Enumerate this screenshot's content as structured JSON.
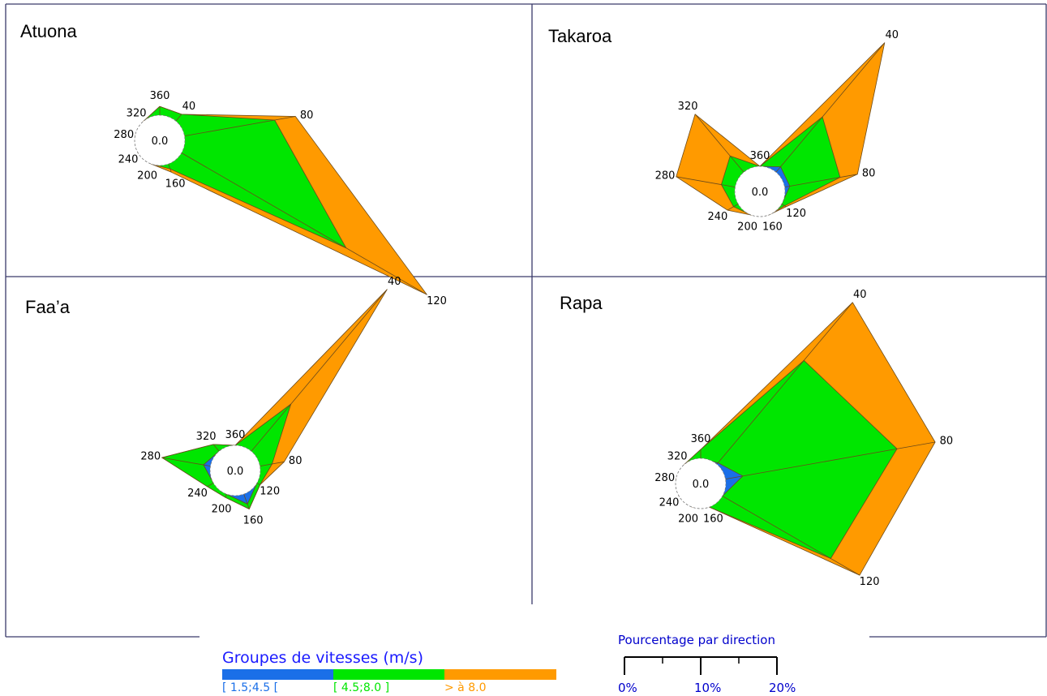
{
  "colors": {
    "frame": "#3a3a6a",
    "blue": "#1a6fe8",
    "green": "#00e600",
    "orange": "#ff9a00",
    "edge": "#6b4a1a",
    "legend_title": "#1a1aff"
  },
  "legend": {
    "title": "Groupes de vitesses (m/s)",
    "groups": [
      {
        "label": "[ 1.5;4.5 [",
        "color": "#1a6fe8"
      },
      {
        "label": "[ 4.5;8.0 ]",
        "color": "#00e600"
      },
      {
        "label": "> à 8.0",
        "color": "#ff9a00"
      }
    ]
  },
  "scale": {
    "title": "Pourcentage par direction",
    "ticks": [
      "0%",
      "10%",
      "20%"
    ],
    "color": "#0000cc"
  },
  "chart_data": [
    {
      "type": "wind-rose",
      "title": "Atuona",
      "center_label": "0.0",
      "scale_max_percent": 20,
      "directions": [
        40,
        80,
        120,
        160,
        200,
        240,
        280,
        320,
        360
      ],
      "series": [
        {
          "name": "[ 1.5;4.5 [",
          "values": [
            0,
            0,
            0,
            0,
            0,
            0,
            0,
            0,
            0
          ]
        },
        {
          "name": "[ 4.5;8.0 ]",
          "values": [
            0.5,
            5.2,
            10.8,
            0.3,
            0,
            0,
            0,
            0,
            0.5
          ]
        },
        {
          "name": "> à 8.0",
          "values": [
            0,
            1.2,
            5.3,
            0.2,
            0,
            0,
            0,
            0,
            0
          ]
        }
      ]
    },
    {
      "type": "wind-rose",
      "title": "Takaroa",
      "center_label": "0.0",
      "scale_max_percent": 20,
      "directions": [
        40,
        80,
        120,
        160,
        200,
        240,
        280,
        320,
        360
      ],
      "series": [
        {
          "name": "[ 1.5;4.5 [",
          "values": [
            0.4,
            0.3,
            0,
            0,
            0,
            0,
            0,
            0,
            0
          ]
        },
        {
          "name": "[ 4.5;8.0 ]",
          "values": [
            3.7,
            2.9,
            0.2,
            0,
            0,
            0.3,
            0.8,
            1.2,
            0
          ]
        },
        {
          "name": "> à 8.0",
          "values": [
            5.5,
            1.0,
            0.1,
            0,
            0,
            0.4,
            2.6,
            3.1,
            0
          ]
        }
      ]
    },
    {
      "type": "wind-rose",
      "title": "Faa’a",
      "center_label": "0.0",
      "scale_max_percent": 20,
      "directions": [
        40,
        80,
        120,
        160,
        200,
        240,
        280,
        320,
        360
      ],
      "series": [
        {
          "name": "[ 1.5;4.5 [",
          "values": [
            0,
            0,
            0,
            0.6,
            0,
            0,
            0.4,
            0,
            0
          ]
        },
        {
          "name": "[ 4.5;8.0 ]",
          "values": [
            3.5,
            0.7,
            0.2,
            0.3,
            0.2,
            0.4,
            2.4,
            0.5,
            0
          ]
        },
        {
          "name": "> à 8.0",
          "values": [
            8.5,
            0.7,
            0,
            0,
            0,
            0,
            0,
            0,
            0
          ]
        }
      ]
    },
    {
      "type": "wind-rose",
      "title": "Rapa",
      "center_label": "0.0",
      "scale_max_percent": 20,
      "directions": [
        40,
        80,
        120,
        160,
        200,
        240,
        280,
        320,
        360
      ],
      "series": [
        {
          "name": "[ 1.5;4.5 [",
          "values": [
            0.1,
            1.0,
            0,
            0,
            0,
            0,
            0,
            0,
            0
          ]
        },
        {
          "name": "[ 4.5;8.0 ]",
          "values": [
            7.6,
            8.9,
            7.1,
            0,
            0,
            0,
            0,
            0,
            0.5
          ]
        },
        {
          "name": "> à 8.0",
          "values": [
            4.3,
            2.2,
            1.9,
            0,
            0,
            0,
            0,
            0,
            0
          ]
        }
      ]
    }
  ]
}
